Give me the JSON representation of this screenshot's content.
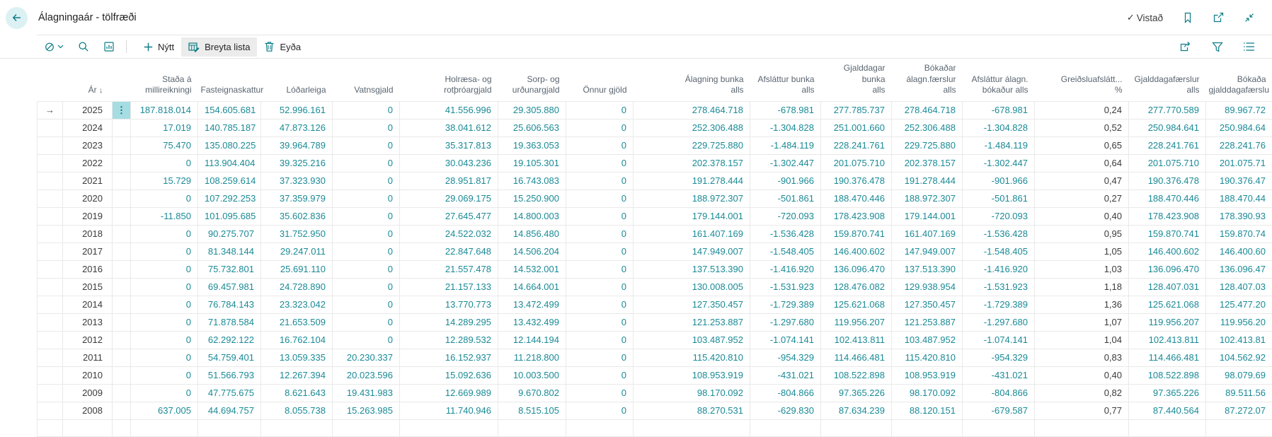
{
  "header": {
    "title": "Álagningaár - tölfræði",
    "saved_check": "✓",
    "saved_label": "Vistað"
  },
  "toolbar": {
    "new_label": "Nýtt",
    "new_plus": "+",
    "edit_list_label": "Breyta lista",
    "delete_label": "Eyða"
  },
  "colors": {
    "accent": "#0b7c87",
    "link": "#1a8a96",
    "row_menu_highlight": "#a5dde3",
    "back_button_bg": "#dcf1f4"
  },
  "table": {
    "year_column": {
      "label": "Ár",
      "sort_indicator": "↓"
    },
    "columns": [
      "Staða á\nmillireikningi",
      "Fasteignaskattur",
      "Lóðarleiga",
      "Vatnsgjald",
      "Holræsa- og\nrotþróargjald",
      "Sorp- og\nurðunargjald",
      "Önnur gjöld",
      "Álagning bunka\nalls",
      "Afsláttur bunka\nalls",
      "Gjalddagar bunka\nalls",
      "Bókaðar\nálagn.færslur alls",
      "Afsláttur álagn.\nbókaður alls",
      "Greiðsluafslátt...\n%",
      "Gjalddagafærslur\nalls",
      "Bókaða\ngjalddagafærslu"
    ],
    "current_row_arrow": "→",
    "row_menu_glyph": "⋮",
    "rows": [
      {
        "year": "2025",
        "current": true,
        "cells": [
          "187.818.014",
          "154.605.681",
          "52.996.161",
          "0",
          "41.556.996",
          "29.305.880",
          "0",
          "278.464.718",
          "-678.981",
          "277.785.737",
          "278.464.718",
          "-678.981",
          "0,24",
          "277.770.589",
          "89.967.72"
        ]
      },
      {
        "year": "2024",
        "current": false,
        "cells": [
          "17.019",
          "140.785.187",
          "47.873.126",
          "0",
          "38.041.612",
          "25.606.563",
          "0",
          "252.306.488",
          "-1.304.828",
          "251.001.660",
          "252.306.488",
          "-1.304.828",
          "0,52",
          "250.984.641",
          "250.984.64"
        ]
      },
      {
        "year": "2023",
        "current": false,
        "cells": [
          "75.470",
          "135.080.225",
          "39.964.789",
          "0",
          "35.317.813",
          "19.363.053",
          "0",
          "229.725.880",
          "-1.484.119",
          "228.241.761",
          "229.725.880",
          "-1.484.119",
          "0,65",
          "228.241.761",
          "228.241.76"
        ]
      },
      {
        "year": "2022",
        "current": false,
        "cells": [
          "0",
          "113.904.404",
          "39.325.216",
          "0",
          "30.043.236",
          "19.105.301",
          "0",
          "202.378.157",
          "-1.302.447",
          "201.075.710",
          "202.378.157",
          "-1.302.447",
          "0,64",
          "201.075.710",
          "201.075.71"
        ]
      },
      {
        "year": "2021",
        "current": false,
        "cells": [
          "15.729",
          "108.259.614",
          "37.323.930",
          "0",
          "28.951.817",
          "16.743.083",
          "0",
          "191.278.444",
          "-901.966",
          "190.376.478",
          "191.278.444",
          "-901.966",
          "0,47",
          "190.376.478",
          "190.376.47"
        ]
      },
      {
        "year": "2020",
        "current": false,
        "cells": [
          "0",
          "107.292.253",
          "37.359.979",
          "0",
          "29.069.175",
          "15.250.900",
          "0",
          "188.972.307",
          "-501.861",
          "188.470.446",
          "188.972.307",
          "-501.861",
          "0,27",
          "188.470.446",
          "188.470.44"
        ]
      },
      {
        "year": "2019",
        "current": false,
        "cells": [
          "-11.850",
          "101.095.685",
          "35.602.836",
          "0",
          "27.645.477",
          "14.800.003",
          "0",
          "179.144.001",
          "-720.093",
          "178.423.908",
          "179.144.001",
          "-720.093",
          "0,40",
          "178.423.908",
          "178.390.93"
        ]
      },
      {
        "year": "2018",
        "current": false,
        "cells": [
          "0",
          "90.275.707",
          "31.752.950",
          "0",
          "24.522.032",
          "14.856.480",
          "0",
          "161.407.169",
          "-1.536.428",
          "159.870.741",
          "161.407.169",
          "-1.536.428",
          "0,95",
          "159.870.741",
          "159.870.74"
        ]
      },
      {
        "year": "2017",
        "current": false,
        "cells": [
          "0",
          "81.348.144",
          "29.247.011",
          "0",
          "22.847.648",
          "14.506.204",
          "0",
          "147.949.007",
          "-1.548.405",
          "146.400.602",
          "147.949.007",
          "-1.548.405",
          "1,05",
          "146.400.602",
          "146.400.60"
        ]
      },
      {
        "year": "2016",
        "current": false,
        "cells": [
          "0",
          "75.732.801",
          "25.691.110",
          "0",
          "21.557.478",
          "14.532.001",
          "0",
          "137.513.390",
          "-1.416.920",
          "136.096.470",
          "137.513.390",
          "-1.416.920",
          "1,03",
          "136.096.470",
          "136.096.47"
        ]
      },
      {
        "year": "2015",
        "current": false,
        "cells": [
          "0",
          "69.457.981",
          "24.728.890",
          "0",
          "21.157.133",
          "14.664.001",
          "0",
          "130.008.005",
          "-1.531.923",
          "128.476.082",
          "129.938.954",
          "-1.531.923",
          "1,18",
          "128.407.031",
          "128.407.03"
        ]
      },
      {
        "year": "2014",
        "current": false,
        "cells": [
          "0",
          "76.784.143",
          "23.323.042",
          "0",
          "13.770.773",
          "13.472.499",
          "0",
          "127.350.457",
          "-1.729.389",
          "125.621.068",
          "127.350.457",
          "-1.729.389",
          "1,36",
          "125.621.068",
          "125.477.20"
        ]
      },
      {
        "year": "2013",
        "current": false,
        "cells": [
          "0",
          "71.878.584",
          "21.653.509",
          "0",
          "14.289.295",
          "13.432.499",
          "0",
          "121.253.887",
          "-1.297.680",
          "119.956.207",
          "121.253.887",
          "-1.297.680",
          "1,07",
          "119.956.207",
          "119.956.20"
        ]
      },
      {
        "year": "2012",
        "current": false,
        "cells": [
          "0",
          "62.292.122",
          "16.762.104",
          "0",
          "12.289.532",
          "12.144.194",
          "0",
          "103.487.952",
          "-1.074.141",
          "102.413.811",
          "103.487.952",
          "-1.074.141",
          "1,04",
          "102.413.811",
          "102.413.81"
        ]
      },
      {
        "year": "2011",
        "current": false,
        "cells": [
          "0",
          "54.759.401",
          "13.059.335",
          "20.230.337",
          "16.152.937",
          "11.218.800",
          "0",
          "115.420.810",
          "-954.329",
          "114.466.481",
          "115.420.810",
          "-954.329",
          "0,83",
          "114.466.481",
          "104.562.92"
        ]
      },
      {
        "year": "2010",
        "current": false,
        "cells": [
          "0",
          "51.566.793",
          "12.267.394",
          "20.023.596",
          "15.092.636",
          "10.003.500",
          "0",
          "108.953.919",
          "-431.021",
          "108.522.898",
          "108.953.919",
          "-431.021",
          "0,40",
          "108.522.898",
          "98.079.69"
        ]
      },
      {
        "year": "2009",
        "current": false,
        "cells": [
          "0",
          "47.775.675",
          "8.621.643",
          "19.431.983",
          "12.669.989",
          "9.670.802",
          "0",
          "98.170.092",
          "-804.866",
          "97.365.226",
          "98.170.092",
          "-804.866",
          "0,82",
          "97.365.226",
          "89.511.56"
        ]
      },
      {
        "year": "2008",
        "current": false,
        "cells": [
          "637.005",
          "44.694.757",
          "8.055.738",
          "15.263.985",
          "11.740.946",
          "8.515.105",
          "0",
          "88.270.531",
          "-629.830",
          "87.634.239",
          "88.120.151",
          "-679.587",
          "0,77",
          "87.440.564",
          "87.272.07"
        ]
      }
    ]
  }
}
